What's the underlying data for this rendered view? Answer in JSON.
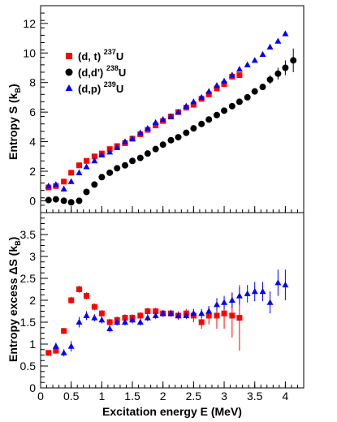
{
  "chart_data": [
    {
      "type": "scatter",
      "ylabel": "Entropy S (k_B)",
      "ylabel_main": "Entropy S (k",
      "ylabel_sub": "B",
      "ylabel_close": ")",
      "xlim": [
        0,
        4.3
      ],
      "ylim": [
        -0.8,
        13.2
      ],
      "yticks": [
        0,
        2,
        4,
        6,
        8,
        10,
        12
      ],
      "grid": false,
      "legend_position": "top-left",
      "series": [
        {
          "legend_text": "(d, t)",
          "legend_isotope_mass": "237",
          "legend_isotope": "U",
          "marker": "square",
          "color": "#ff0000",
          "x": [
            0.13,
            0.25,
            0.38,
            0.5,
            0.63,
            0.75,
            0.88,
            1.0,
            1.13,
            1.25,
            1.38,
            1.5,
            1.63,
            1.75,
            1.88,
            2.0,
            2.13,
            2.25,
            2.38,
            2.5,
            2.63,
            2.75,
            2.88,
            3.0,
            3.13,
            3.25
          ],
          "y": [
            0.9,
            1.0,
            1.3,
            1.9,
            2.4,
            2.7,
            3.0,
            3.2,
            3.5,
            3.7,
            3.9,
            4.2,
            4.5,
            4.8,
            5.1,
            5.4,
            5.7,
            6.0,
            6.3,
            6.5,
            6.9,
            7.2,
            7.6,
            7.9,
            8.4,
            8.5
          ]
        },
        {
          "legend_text": "(d,d')",
          "legend_isotope_mass": "238",
          "legend_isotope": "U",
          "marker": "circle",
          "color": "#000000",
          "x": [
            0.13,
            0.25,
            0.38,
            0.5,
            0.63,
            0.75,
            0.88,
            1.0,
            1.13,
            1.25,
            1.38,
            1.5,
            1.63,
            1.75,
            1.88,
            2.0,
            2.13,
            2.25,
            2.38,
            2.5,
            2.63,
            2.75,
            2.88,
            3.0,
            3.13,
            3.25,
            3.38,
            3.5,
            3.63,
            3.75,
            3.88,
            4.0,
            4.13
          ],
          "y": [
            0.05,
            0.1,
            0.0,
            -0.1,
            0.0,
            0.6,
            1.1,
            1.6,
            1.9,
            2.2,
            2.4,
            2.7,
            2.9,
            3.2,
            3.5,
            3.8,
            4.1,
            4.3,
            4.6,
            4.9,
            5.2,
            5.5,
            5.8,
            6.1,
            6.4,
            6.7,
            7.0,
            7.4,
            7.7,
            8.2,
            8.6,
            9.0,
            9.5
          ],
          "yerr": [
            0,
            0,
            0,
            0,
            0,
            0,
            0,
            0,
            0,
            0,
            0,
            0,
            0,
            0,
            0,
            0,
            0,
            0,
            0,
            0,
            0,
            0,
            0,
            0,
            0,
            0,
            0,
            0,
            0,
            0.3,
            0.4,
            0.5,
            0.8
          ]
        },
        {
          "legend_text": "(d,p)",
          "legend_isotope_mass": "239",
          "legend_isotope": "U",
          "marker": "triangle",
          "color": "#0000ff",
          "x": [
            0.13,
            0.25,
            0.38,
            0.5,
            0.63,
            0.75,
            0.88,
            1.0,
            1.13,
            1.25,
            1.38,
            1.5,
            1.63,
            1.75,
            1.88,
            2.0,
            2.13,
            2.25,
            2.38,
            2.5,
            2.63,
            2.75,
            2.88,
            3.0,
            3.13,
            3.25,
            3.38,
            3.5,
            3.63,
            3.75,
            3.88,
            4.0
          ],
          "y": [
            1.0,
            1.1,
            0.8,
            1.3,
            1.9,
            2.3,
            2.7,
            3.1,
            3.3,
            3.6,
            4.0,
            4.2,
            4.6,
            4.9,
            5.3,
            5.5,
            5.7,
            6.0,
            6.4,
            6.7,
            7.0,
            7.4,
            7.8,
            8.1,
            8.5,
            8.9,
            9.2,
            9.5,
            9.9,
            10.4,
            10.8,
            11.3
          ]
        }
      ]
    },
    {
      "type": "scatter",
      "xlabel": "Excitation energy E (MeV)",
      "ylabel": "Entropy excess ΔS (k_B)",
      "ylabel_main": "Entropy excess ΔS (k",
      "ylabel_sub": "B",
      "ylabel_close": ")",
      "xlim": [
        0,
        4.3
      ],
      "ylim": [
        0,
        4
      ],
      "xticks": [
        0,
        0.5,
        1,
        1.5,
        2,
        2.5,
        3,
        3.5,
        4
      ],
      "xticklabels": [
        "0",
        "0.5",
        "1",
        "1.5",
        "2",
        "2.5",
        "3",
        "3.5",
        "4"
      ],
      "yticks": [
        0,
        0.5,
        1,
        1.5,
        2,
        2.5,
        3,
        3.5
      ],
      "yticklabels": [
        "0",
        "0.5",
        "1",
        "1.5",
        "2",
        "2.5",
        "3",
        "3.5"
      ],
      "grid": false,
      "series": [
        {
          "marker": "square",
          "color": "#ff0000",
          "x": [
            0.13,
            0.25,
            0.38,
            0.5,
            0.63,
            0.75,
            0.88,
            1.0,
            1.13,
            1.25,
            1.38,
            1.5,
            1.63,
            1.75,
            1.88,
            2.0,
            2.13,
            2.25,
            2.38,
            2.5,
            2.63,
            2.75,
            2.88,
            3.0,
            3.13,
            3.25
          ],
          "y": [
            0.8,
            0.85,
            1.3,
            2.0,
            2.25,
            2.1,
            1.85,
            1.7,
            1.5,
            1.55,
            1.6,
            1.6,
            1.65,
            1.75,
            1.75,
            1.7,
            1.7,
            1.65,
            1.7,
            1.65,
            1.5,
            1.65,
            1.65,
            1.7,
            1.65,
            1.6
          ],
          "yerr": [
            0.05,
            0.05,
            0.07,
            0.08,
            0.08,
            0.08,
            0.08,
            0.08,
            0.08,
            0.08,
            0.08,
            0.08,
            0.08,
            0.08,
            0.08,
            0.08,
            0.08,
            0.1,
            0.1,
            0.15,
            0.15,
            0.2,
            0.3,
            0.35,
            0.5,
            0.75
          ]
        },
        {
          "marker": "triangle",
          "color": "#0000ff",
          "x": [
            0.25,
            0.38,
            0.5,
            0.63,
            0.75,
            0.88,
            1.0,
            1.13,
            1.25,
            1.38,
            1.5,
            1.63,
            1.75,
            1.88,
            2.0,
            2.13,
            2.25,
            2.38,
            2.5,
            2.63,
            2.75,
            2.88,
            3.0,
            3.13,
            3.25,
            3.38,
            3.5,
            3.63,
            3.75,
            3.88,
            4.0
          ],
          "y": [
            0.95,
            0.8,
            0.95,
            1.5,
            1.65,
            1.6,
            1.55,
            1.35,
            1.5,
            1.5,
            1.55,
            1.5,
            1.6,
            1.65,
            1.7,
            1.7,
            1.65,
            1.65,
            1.7,
            1.7,
            1.75,
            1.9,
            1.95,
            2.0,
            2.1,
            2.15,
            2.2,
            2.2,
            1.95,
            2.4,
            2.35
          ],
          "yerr": [
            0.08,
            0.08,
            0.12,
            0.12,
            0.1,
            0.08,
            0.08,
            0.08,
            0.08,
            0.08,
            0.08,
            0.08,
            0.08,
            0.08,
            0.08,
            0.08,
            0.08,
            0.08,
            0.1,
            0.1,
            0.12,
            0.15,
            0.15,
            0.18,
            0.2,
            0.2,
            0.22,
            0.22,
            0.25,
            0.3,
            0.35
          ]
        }
      ]
    }
  ]
}
